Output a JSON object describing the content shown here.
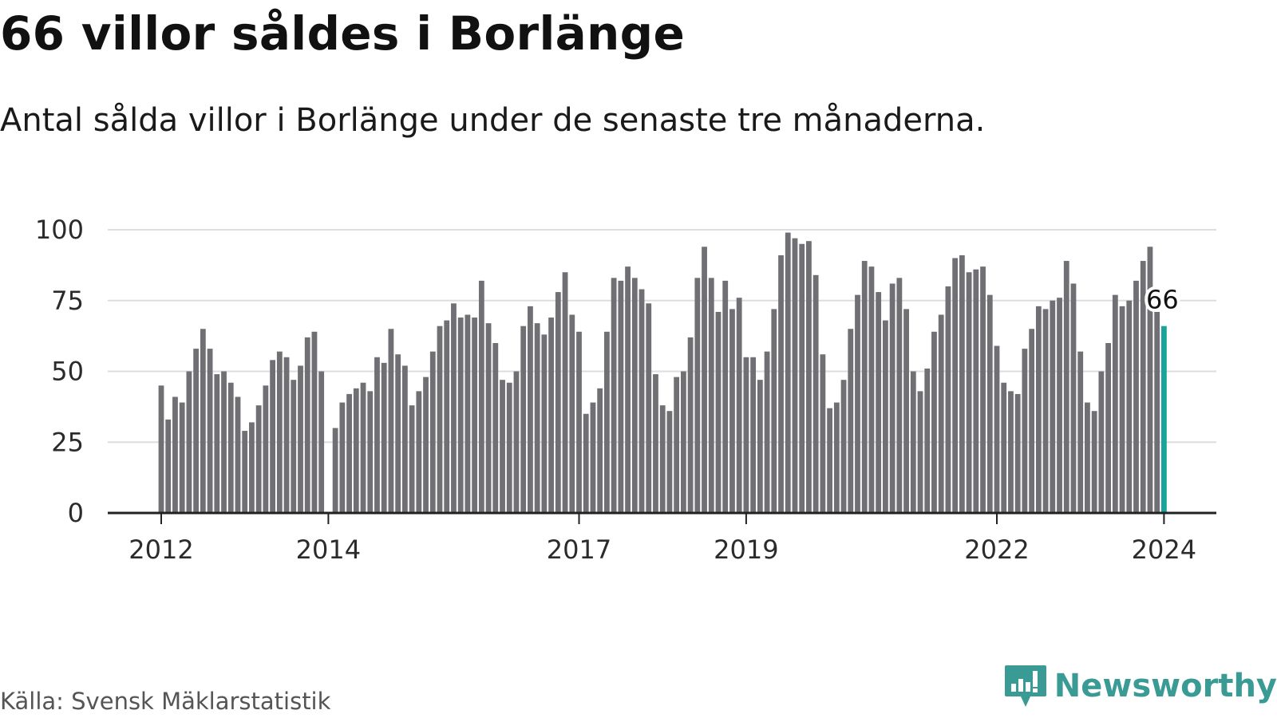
{
  "title": "66 villor såldes i Borlänge",
  "subtitle": "Antal sålda villor i Borlänge under de senaste tre månaderna.",
  "source": "Källa: Svensk Mäklarstatistik",
  "brand": {
    "name": "Newsworthy",
    "logo_icon": "newsworthy-chart-bubble-icon"
  },
  "colors": {
    "bar": "#707074",
    "highlight": "#1aa39a",
    "grid": "#dddddd",
    "axis": "#222222",
    "brand": "#3a9a94"
  },
  "chart_data": {
    "type": "bar",
    "title": "66 villor såldes i Borlänge",
    "subtitle": "Antal sålda villor i Borlänge under de senaste tre månaderna.",
    "xlabel": "",
    "ylabel": "",
    "ylim": [
      0,
      100
    ],
    "yticks": [
      0,
      25,
      50,
      75,
      100
    ],
    "grid": true,
    "series_start": "2012-01",
    "frequency": "monthly",
    "xtick_labels": [
      {
        "label": "2012",
        "index": 0
      },
      {
        "label": "2014",
        "index": 24
      },
      {
        "label": "2017",
        "index": 60
      },
      {
        "label": "2019",
        "index": 84
      },
      {
        "label": "2022",
        "index": 120
      },
      {
        "label": "2024",
        "index": 144
      }
    ],
    "values": [
      45,
      33,
      41,
      39,
      50,
      58,
      65,
      58,
      49,
      50,
      46,
      41,
      29,
      32,
      38,
      45,
      54,
      57,
      55,
      47,
      52,
      62,
      64,
      50,
      0,
      30,
      39,
      42,
      44,
      46,
      43,
      55,
      53,
      65,
      56,
      52,
      38,
      43,
      48,
      57,
      66,
      68,
      74,
      69,
      70,
      69,
      82,
      67,
      60,
      47,
      46,
      50,
      66,
      73,
      67,
      63,
      69,
      78,
      85,
      70,
      64,
      35,
      39,
      44,
      64,
      83,
      82,
      87,
      83,
      79,
      74,
      49,
      38,
      36,
      48,
      50,
      62,
      83,
      94,
      83,
      71,
      82,
      72,
      76,
      55,
      55,
      47,
      57,
      72,
      91,
      99,
      97,
      95,
      96,
      84,
      56,
      37,
      39,
      47,
      65,
      77,
      89,
      87,
      78,
      68,
      81,
      83,
      72,
      50,
      43,
      51,
      64,
      70,
      80,
      90,
      91,
      85,
      86,
      87,
      77,
      59,
      46,
      43,
      42,
      58,
      65,
      73,
      72,
      75,
      76,
      89,
      81,
      57,
      39,
      36,
      50,
      60,
      77,
      73,
      75,
      82,
      89,
      94,
      71,
      66
    ],
    "highlight_index": 144,
    "highlight_label": "66"
  }
}
